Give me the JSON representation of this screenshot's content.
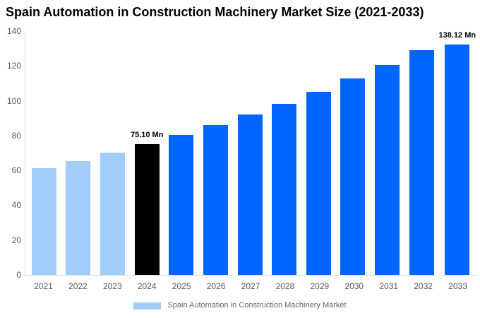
{
  "title": "Spain Automation in Construction Machinery Market Size (2021-2033)",
  "chart_data": {
    "type": "bar",
    "title": "Spain Automation in Construction Machinery Market Size (2021-2033)",
    "categories": [
      "2021",
      "2022",
      "2023",
      "2024",
      "2025",
      "2026",
      "2027",
      "2028",
      "2029",
      "2030",
      "2031",
      "2032",
      "2033"
    ],
    "series": [
      {
        "name": "Spain Automation in Construction Machinery Market",
        "values": [
          61.3,
          65.3,
          70.2,
          75.1,
          80.4,
          86.0,
          92.0,
          98.4,
          105.3,
          112.7,
          120.6,
          129.0,
          138.12
        ]
      }
    ],
    "data_labels": [
      "",
      "",
      "",
      "75.10 Mn",
      "",
      "",
      "",
      "",
      "",
      "",
      "",
      "",
      "138.12 Mn"
    ],
    "bar_colors": [
      "#a3cdf9",
      "#a3cdf9",
      "#a3cdf9",
      "#000000",
      "#0066ff",
      "#0066ff",
      "#0066ff",
      "#0066ff",
      "#0066ff",
      "#0066ff",
      "#0066ff",
      "#0066ff",
      "#0066ff"
    ],
    "xlabel": "",
    "ylabel": "",
    "ylim": [
      0,
      140
    ],
    "yticks": [
      0,
      20,
      40,
      60,
      80,
      100,
      120,
      140
    ],
    "grid": false,
    "legend_position": "bottom"
  },
  "legend": {
    "swatch_color": "#a3cdf9",
    "label": "Spain Automation in Construction Machinery Market"
  },
  "colors": {
    "historical_bar": "#a3cdf9",
    "base_year_bar": "#000000",
    "forecast_bar": "#0066ff",
    "axis_line": "#d9d9d9",
    "axis_text": "#595959",
    "title_text": "#000000"
  }
}
